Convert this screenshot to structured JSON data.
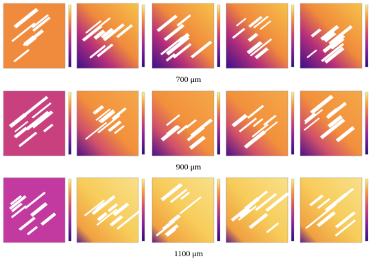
{
  "figure": {
    "rows": [
      {
        "caption": "700 μm"
      },
      {
        "caption": "900 μm"
      },
      {
        "caption": "1100 μm"
      }
    ]
  }
}
